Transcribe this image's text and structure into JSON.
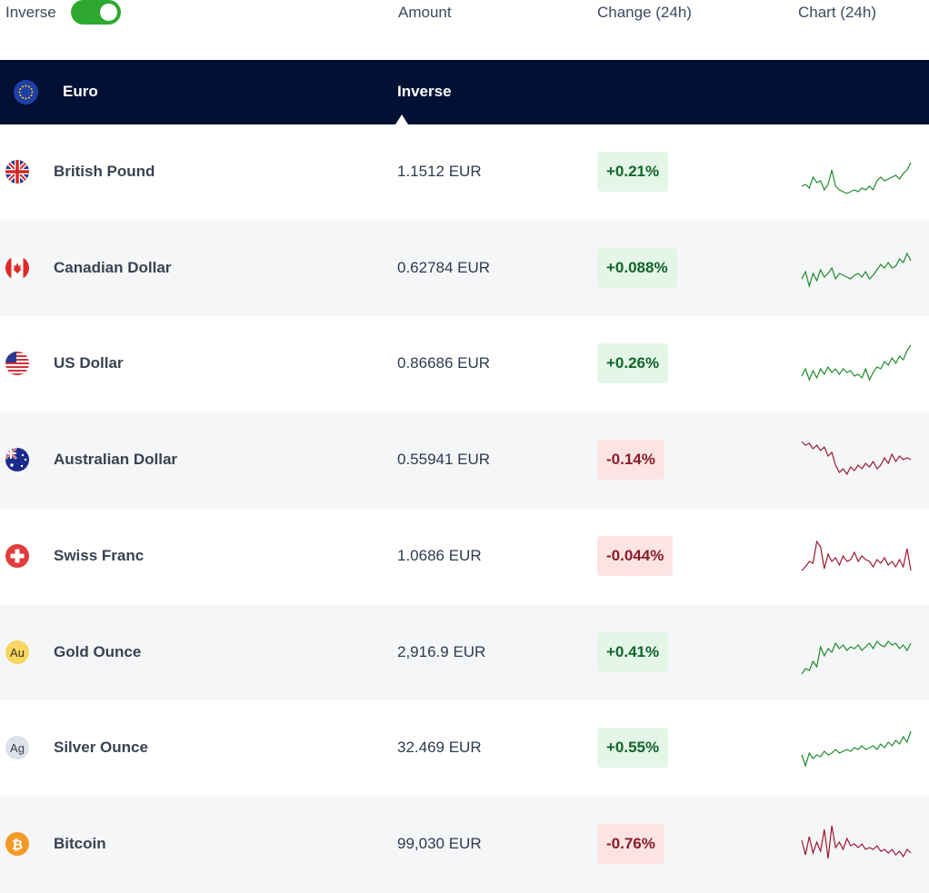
{
  "header": {
    "inverse_label": "Inverse",
    "inverse_on": true,
    "col_amount": "Amount",
    "col_change": "Change (24h)",
    "col_chart": "Chart (24h)"
  },
  "base": {
    "name": "Euro",
    "mode_label": "Inverse"
  },
  "colors": {
    "up": "#1e8a2a",
    "down": "#9c1830",
    "header_bg": "#021034",
    "toggle_on": "#2ea830"
  },
  "rows": [
    {
      "icon": "uk-flag-icon",
      "name": "British Pound",
      "amount": "1.1512 EUR",
      "change": "+0.21%",
      "dir": "up",
      "spark": [
        40,
        38,
        42,
        30,
        36,
        34,
        44,
        38,
        22,
        40,
        44,
        46,
        48,
        46,
        44,
        46,
        42,
        44,
        40,
        44,
        34,
        30,
        34,
        32,
        30,
        28,
        32,
        26,
        22,
        14
      ]
    },
    {
      "icon": "canada-flag-icon",
      "name": "Canadian Dollar",
      "amount": "0.62784 EUR",
      "change": "+0.088%",
      "dir": "up",
      "spark": [
        36,
        28,
        44,
        30,
        38,
        26,
        34,
        30,
        24,
        36,
        30,
        32,
        34,
        36,
        32,
        30,
        34,
        28,
        36,
        32,
        26,
        20,
        24,
        18,
        24,
        22,
        14,
        18,
        8,
        16
      ]
    },
    {
      "icon": "us-flag-icon",
      "name": "US Dollar",
      "amount": "0.86686 EUR",
      "change": "+0.26%",
      "dir": "up",
      "spark": [
        38,
        30,
        42,
        32,
        40,
        30,
        36,
        28,
        34,
        30,
        36,
        30,
        34,
        32,
        38,
        36,
        40,
        30,
        42,
        34,
        28,
        30,
        22,
        26,
        18,
        24,
        16,
        20,
        10,
        4
      ]
    },
    {
      "icon": "australia-flag-icon",
      "name": "Australian Dollar",
      "amount": "0.55941 EUR",
      "change": "-0.14%",
      "dir": "down",
      "spark": [
        4,
        8,
        6,
        12,
        8,
        14,
        10,
        20,
        16,
        30,
        38,
        34,
        40,
        32,
        36,
        30,
        34,
        28,
        32,
        26,
        34,
        30,
        22,
        28,
        18,
        26,
        20,
        24,
        22,
        24
      ]
    },
    {
      "icon": "switzerland-flag-icon",
      "name": "Swiss Franc",
      "amount": "1.0686 EUR",
      "change": "-0.044%",
      "dir": "down",
      "spark": [
        40,
        36,
        30,
        32,
        8,
        14,
        38,
        22,
        30,
        26,
        34,
        24,
        30,
        28,
        20,
        30,
        24,
        28,
        30,
        36,
        28,
        32,
        26,
        34,
        30,
        36,
        28,
        36,
        16,
        40
      ]
    },
    {
      "icon": "gold-icon",
      "name": "Gold Ounce",
      "amount": "2,916.9 EUR",
      "change": "+0.41%",
      "dir": "up",
      "spark": [
        48,
        42,
        44,
        34,
        40,
        18,
        28,
        20,
        24,
        14,
        20,
        16,
        22,
        18,
        20,
        16,
        22,
        18,
        14,
        20,
        12,
        16,
        18,
        12,
        16,
        14,
        20,
        16,
        22,
        14
      ]
    },
    {
      "icon": "silver-icon",
      "name": "Silver Ounce",
      "amount": "32.469 EUR",
      "change": "+0.55%",
      "dir": "up",
      "spark": [
        32,
        44,
        30,
        36,
        32,
        34,
        28,
        32,
        30,
        26,
        30,
        28,
        26,
        28,
        24,
        26,
        22,
        26,
        24,
        22,
        26,
        20,
        24,
        18,
        22,
        16,
        20,
        12,
        18,
        6
      ]
    },
    {
      "icon": "bitcoin-icon",
      "name": "Bitcoin",
      "amount": "99,030 EUR",
      "change": "-0.76%",
      "dir": "down",
      "spark": [
        20,
        36,
        16,
        34,
        22,
        32,
        8,
        40,
        4,
        28,
        22,
        30,
        18,
        26,
        24,
        28,
        24,
        30,
        28,
        30,
        26,
        32,
        30,
        34,
        30,
        36,
        32,
        38,
        30,
        34
      ]
    }
  ]
}
